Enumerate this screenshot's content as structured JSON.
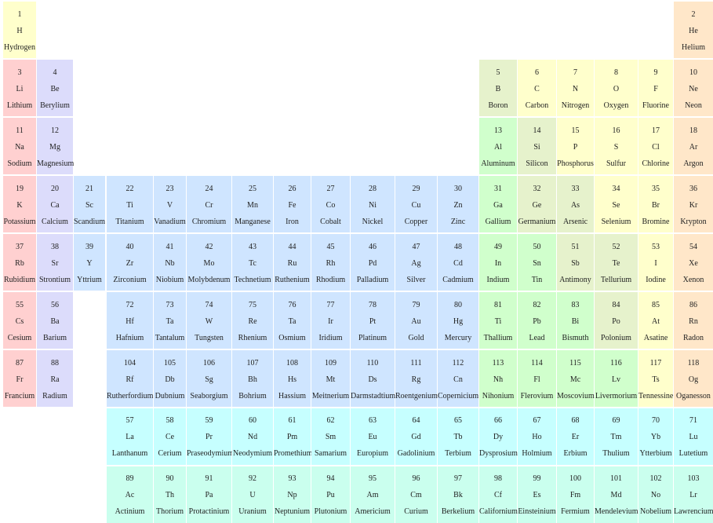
{
  "colors": {
    "nonmetal": "#ffffcc",
    "noble": "#ffe7c9",
    "alkali": "#ffd0d0",
    "alkaline": "#dcdcfb",
    "transition": "#cfe5ff",
    "post_transition": "#d0ffcc",
    "metalloid": "#e6f2cc",
    "lanthanide": "#c6ffff",
    "actinide": "#caffee"
  },
  "elements": [
    {
      "n": "1",
      "s": "H",
      "name": "Hydrogen",
      "c": "nonmetal"
    },
    {
      "n": "2",
      "s": "He",
      "name": "Helium",
      "c": "noble"
    },
    {
      "n": "3",
      "s": "Li",
      "name": "Lithium",
      "c": "alkali"
    },
    {
      "n": "4",
      "s": "Be",
      "name": "Berylium",
      "c": "alkaline"
    },
    {
      "n": "5",
      "s": "B",
      "name": "Boron",
      "c": "metalloid"
    },
    {
      "n": "6",
      "s": "C",
      "name": "Carbon",
      "c": "nonmetal"
    },
    {
      "n": "7",
      "s": "N",
      "name": "Nitrogen",
      "c": "nonmetal"
    },
    {
      "n": "8",
      "s": "O",
      "name": "Oxygen",
      "c": "nonmetal"
    },
    {
      "n": "9",
      "s": "F",
      "name": "Fluorine",
      "c": "nonmetal"
    },
    {
      "n": "10",
      "s": "Ne",
      "name": "Neon",
      "c": "noble"
    },
    {
      "n": "11",
      "s": "Na",
      "name": "Sodium",
      "c": "alkali"
    },
    {
      "n": "12",
      "s": "Mg",
      "name": "Magnesium",
      "c": "alkaline"
    },
    {
      "n": "13",
      "s": "Al",
      "name": "Aluminum",
      "c": "post_transition"
    },
    {
      "n": "14",
      "s": "Si",
      "name": "Silicon",
      "c": "metalloid"
    },
    {
      "n": "15",
      "s": "P",
      "name": "Phosphorus",
      "c": "nonmetal"
    },
    {
      "n": "16",
      "s": "S",
      "name": "Sulfur",
      "c": "nonmetal"
    },
    {
      "n": "17",
      "s": "Cl",
      "name": "Chlorine",
      "c": "nonmetal"
    },
    {
      "n": "18",
      "s": "Ar",
      "name": "Argon",
      "c": "noble"
    },
    {
      "n": "19",
      "s": "K",
      "name": "Potassium",
      "c": "alkali"
    },
    {
      "n": "20",
      "s": "Ca",
      "name": "Calcium",
      "c": "alkaline"
    },
    {
      "n": "21",
      "s": "Sc",
      "name": "Scandium",
      "c": "transition"
    },
    {
      "n": "22",
      "s": "Ti",
      "name": "Titanium",
      "c": "transition"
    },
    {
      "n": "23",
      "s": "V",
      "name": "Vanadium",
      "c": "transition"
    },
    {
      "n": "24",
      "s": "Cr",
      "name": "Chromium",
      "c": "transition"
    },
    {
      "n": "25",
      "s": "Mn",
      "name": "Manganese",
      "c": "transition"
    },
    {
      "n": "26",
      "s": "Fe",
      "name": "Iron",
      "c": "transition"
    },
    {
      "n": "27",
      "s": "Co",
      "name": "Cobalt",
      "c": "transition"
    },
    {
      "n": "28",
      "s": "Ni",
      "name": "Nickel",
      "c": "transition"
    },
    {
      "n": "29",
      "s": "Cu",
      "name": "Copper",
      "c": "transition"
    },
    {
      "n": "30",
      "s": "Zn",
      "name": "Zinc",
      "c": "transition"
    },
    {
      "n": "31",
      "s": "Ga",
      "name": "Gallium",
      "c": "post_transition"
    },
    {
      "n": "32",
      "s": "Ge",
      "name": "Germanium",
      "c": "metalloid"
    },
    {
      "n": "33",
      "s": "As",
      "name": "Arsenic",
      "c": "metalloid"
    },
    {
      "n": "34",
      "s": "Se",
      "name": "Selenium",
      "c": "nonmetal"
    },
    {
      "n": "35",
      "s": "Br",
      "name": "Bromine",
      "c": "nonmetal"
    },
    {
      "n": "36",
      "s": "Kr",
      "name": "Krypton",
      "c": "noble"
    },
    {
      "n": "37",
      "s": "Rb",
      "name": "Rubidium",
      "c": "alkali"
    },
    {
      "n": "38",
      "s": "Sr",
      "name": "Strontium",
      "c": "alkaline"
    },
    {
      "n": "39",
      "s": "Y",
      "name": "Yttrium",
      "c": "transition"
    },
    {
      "n": "40",
      "s": "Zr",
      "name": "Zirconium",
      "c": "transition"
    },
    {
      "n": "41",
      "s": "Nb",
      "name": "Niobium",
      "c": "transition"
    },
    {
      "n": "42",
      "s": "Mo",
      "name": "Molybdenum",
      "c": "transition"
    },
    {
      "n": "43",
      "s": "Tc",
      "name": "Technetium",
      "c": "transition"
    },
    {
      "n": "44",
      "s": "Ru",
      "name": "Ruthenium",
      "c": "transition"
    },
    {
      "n": "45",
      "s": "Rh",
      "name": "Rhodium",
      "c": "transition"
    },
    {
      "n": "46",
      "s": "Pd",
      "name": "Palladium",
      "c": "transition"
    },
    {
      "n": "47",
      "s": "Ag",
      "name": "Silver",
      "c": "transition"
    },
    {
      "n": "48",
      "s": "Cd",
      "name": "Cadmium",
      "c": "transition"
    },
    {
      "n": "49",
      "s": "In",
      "name": "Indium",
      "c": "post_transition"
    },
    {
      "n": "50",
      "s": "Sn",
      "name": "Tin",
      "c": "post_transition"
    },
    {
      "n": "51",
      "s": "Sb",
      "name": "Antimony",
      "c": "metalloid"
    },
    {
      "n": "52",
      "s": "Te",
      "name": "Tellurium",
      "c": "metalloid"
    },
    {
      "n": "53",
      "s": "I",
      "name": "Iodine",
      "c": "nonmetal"
    },
    {
      "n": "54",
      "s": "Xe",
      "name": "Xenon",
      "c": "noble"
    },
    {
      "n": "55",
      "s": "Cs",
      "name": "Cesium",
      "c": "alkali"
    },
    {
      "n": "56",
      "s": "Ba",
      "name": "Barium",
      "c": "alkaline"
    },
    {
      "n": "72",
      "s": "Hf",
      "name": "Hafnium",
      "c": "transition"
    },
    {
      "n": "73",
      "s": "Ta",
      "name": "Tantalum",
      "c": "transition"
    },
    {
      "n": "74",
      "s": "W",
      "name": "Tungsten",
      "c": "transition"
    },
    {
      "n": "75",
      "s": "Re",
      "name": "Rhenium",
      "c": "transition"
    },
    {
      "n": "76",
      "s": "Ta",
      "name": "Osmium",
      "c": "transition"
    },
    {
      "n": "77",
      "s": "Ir",
      "name": "Iridium",
      "c": "transition"
    },
    {
      "n": "78",
      "s": "Pt",
      "name": "Platinum",
      "c": "transition"
    },
    {
      "n": "79",
      "s": "Au",
      "name": "Gold",
      "c": "transition"
    },
    {
      "n": "80",
      "s": "Hg",
      "name": "Mercury",
      "c": "transition"
    },
    {
      "n": "81",
      "s": "Ti",
      "name": "Thallium",
      "c": "post_transition"
    },
    {
      "n": "82",
      "s": "Pb",
      "name": "Lead",
      "c": "post_transition"
    },
    {
      "n": "83",
      "s": "Bi",
      "name": "Bismuth",
      "c": "post_transition"
    },
    {
      "n": "84",
      "s": "Po",
      "name": "Polonium",
      "c": "metalloid"
    },
    {
      "n": "85",
      "s": "At",
      "name": "Asatine",
      "c": "nonmetal"
    },
    {
      "n": "86",
      "s": "Rn",
      "name": "Radon",
      "c": "noble"
    },
    {
      "n": "87",
      "s": "Fr",
      "name": "Francium",
      "c": "alkali"
    },
    {
      "n": "88",
      "s": "Ra",
      "name": "Radium",
      "c": "alkaline"
    },
    {
      "n": "104",
      "s": "Rf",
      "name": "Rutherfordium",
      "c": "transition"
    },
    {
      "n": "105",
      "s": "Db",
      "name": "Dubnium",
      "c": "transition"
    },
    {
      "n": "106",
      "s": "Sg",
      "name": "Seaborgium",
      "c": "transition"
    },
    {
      "n": "107",
      "s": "Bh",
      "name": "Bohrium",
      "c": "transition"
    },
    {
      "n": "108",
      "s": "Hs",
      "name": "Hassium",
      "c": "transition"
    },
    {
      "n": "109",
      "s": "Mt",
      "name": "Meitnerium",
      "c": "transition"
    },
    {
      "n": "110",
      "s": "Ds",
      "name": "Darmstadtium",
      "c": "transition"
    },
    {
      "n": "111",
      "s": "Rg",
      "name": "Roentgenium",
      "c": "transition"
    },
    {
      "n": "112",
      "s": "Cn",
      "name": "Copernicium",
      "c": "transition"
    },
    {
      "n": "113",
      "s": "Nh",
      "name": "Nihonium",
      "c": "post_transition"
    },
    {
      "n": "114",
      "s": "Fl",
      "name": "Flerovium",
      "c": "post_transition"
    },
    {
      "n": "115",
      "s": "Mc",
      "name": "Moscovium",
      "c": "post_transition"
    },
    {
      "n": "116",
      "s": "Lv",
      "name": "Livermorium",
      "c": "post_transition"
    },
    {
      "n": "117",
      "s": "Ts",
      "name": "Tennessine",
      "c": "nonmetal"
    },
    {
      "n": "118",
      "s": "Og",
      "name": "Oganesson",
      "c": "noble"
    },
    {
      "n": "57",
      "s": "La",
      "name": "Lanthanum",
      "c": "lanthanide"
    },
    {
      "n": "58",
      "s": "Ce",
      "name": "Cerium",
      "c": "lanthanide"
    },
    {
      "n": "59",
      "s": "Pr",
      "name": "Praseodymium",
      "c": "lanthanide"
    },
    {
      "n": "60",
      "s": "Nd",
      "name": "Neodymium",
      "c": "lanthanide"
    },
    {
      "n": "61",
      "s": "Pm",
      "name": "Promethium",
      "c": "lanthanide"
    },
    {
      "n": "62",
      "s": "Sm",
      "name": "Samarium",
      "c": "lanthanide"
    },
    {
      "n": "63",
      "s": "Eu",
      "name": "Europium",
      "c": "lanthanide"
    },
    {
      "n": "64",
      "s": "Gd",
      "name": "Gadolinium",
      "c": "lanthanide"
    },
    {
      "n": "65",
      "s": "Tb",
      "name": "Terbium",
      "c": "lanthanide"
    },
    {
      "n": "66",
      "s": "Dy",
      "name": "Dysprosium",
      "c": "lanthanide"
    },
    {
      "n": "67",
      "s": "Ho",
      "name": "Holmium",
      "c": "lanthanide"
    },
    {
      "n": "68",
      "s": "Er",
      "name": "Erbium",
      "c": "lanthanide"
    },
    {
      "n": "69",
      "s": "Tm",
      "name": "Thulium",
      "c": "lanthanide"
    },
    {
      "n": "70",
      "s": "Yb",
      "name": "Ytterbium",
      "c": "lanthanide"
    },
    {
      "n": "71",
      "s": "Lu",
      "name": "Lutetium",
      "c": "lanthanide"
    },
    {
      "n": "89",
      "s": "Ac",
      "name": "Actinium",
      "c": "actinide"
    },
    {
      "n": "90",
      "s": "Th",
      "name": "Thorium",
      "c": "actinide"
    },
    {
      "n": "91",
      "s": "Pa",
      "name": "Protactinium",
      "c": "actinide"
    },
    {
      "n": "92",
      "s": "U",
      "name": "Uranium",
      "c": "actinide"
    },
    {
      "n": "93",
      "s": "Np",
      "name": "Neptunium",
      "c": "actinide"
    },
    {
      "n": "94",
      "s": "Pu",
      "name": "Plutonium",
      "c": "actinide"
    },
    {
      "n": "95",
      "s": "Am",
      "name": "Americium",
      "c": "actinide"
    },
    {
      "n": "96",
      "s": "Cm",
      "name": "Curium",
      "c": "actinide"
    },
    {
      "n": "97",
      "s": "Bk",
      "name": "Berkelium",
      "c": "actinide"
    },
    {
      "n": "98",
      "s": "Cf",
      "name": "Californium",
      "c": "actinide"
    },
    {
      "n": "99",
      "s": "Es",
      "name": "Einsteinium",
      "c": "actinide"
    },
    {
      "n": "100",
      "s": "Fm",
      "name": "Fermium",
      "c": "actinide"
    },
    {
      "n": "101",
      "s": "Md",
      "name": "Mendelevium",
      "c": "actinide"
    },
    {
      "n": "102",
      "s": "No",
      "name": "Nobelium",
      "c": "actinide"
    },
    {
      "n": "103",
      "s": "Lr",
      "name": "Lawrencium",
      "c": "actinide"
    }
  ]
}
